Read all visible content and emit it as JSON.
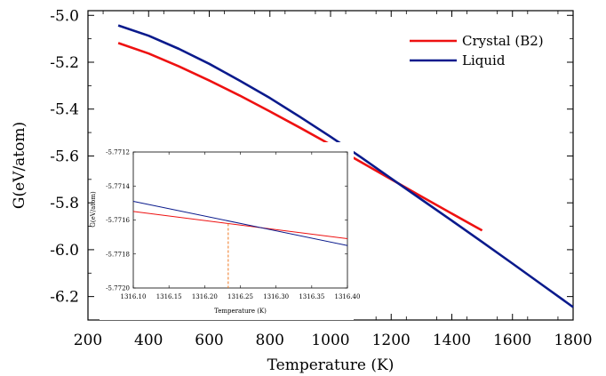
{
  "chart_data": [
    {
      "type": "line",
      "title": "",
      "xlabel": "Temperature (K)",
      "ylabel": "G(eV/atom)",
      "xlim": [
        200,
        1800
      ],
      "ylim": [
        -6.3,
        -4.98
      ],
      "xticks": [
        200,
        400,
        600,
        800,
        1000,
        1200,
        1400,
        1600,
        1800
      ],
      "xtick_labels": [
        "200",
        "400",
        "600",
        "800",
        "1000",
        "1200",
        "1400",
        "1600",
        "1800"
      ],
      "yticks": [
        -5.0,
        -5.2,
        -5.4,
        -5.6,
        -5.8,
        -6.0,
        -6.2
      ],
      "ytick_labels": [
        "-5.0",
        "-5.2",
        "-5.4",
        "-5.6",
        "-5.8",
        "-6.0",
        "-6.2"
      ],
      "legend_position": "top-right",
      "grid": false,
      "series": [
        {
          "name": "Crystal (B2)",
          "color": "#ee1111",
          "x": [
            300,
            400,
            500,
            600,
            700,
            800,
            900,
            1000,
            1100,
            1200,
            1300,
            1400,
            1500
          ],
          "y": [
            -5.118,
            -5.163,
            -5.218,
            -5.278,
            -5.342,
            -5.41,
            -5.48,
            -5.552,
            -5.626,
            -5.7,
            -5.773,
            -5.846,
            -5.918
          ]
        },
        {
          "name": "Liquid",
          "color": "#0a1a8c",
          "x": [
            300,
            400,
            500,
            600,
            700,
            800,
            900,
            1000,
            1100,
            1200,
            1300,
            1400,
            1500,
            1600,
            1700,
            1800
          ],
          "y": [
            -5.043,
            -5.087,
            -5.143,
            -5.207,
            -5.278,
            -5.353,
            -5.434,
            -5.518,
            -5.605,
            -5.696,
            -5.786,
            -5.876,
            -5.967,
            -6.059,
            -6.152,
            -6.245
          ]
        }
      ]
    },
    {
      "type": "line",
      "title": "",
      "xlabel": "Temperature (K)",
      "ylabel": "G(eV/atom)",
      "xlim": [
        1316.1,
        1316.4
      ],
      "ylim": [
        -5.772,
        -5.7712
      ],
      "xticks": [
        1316.1,
        1316.15,
        1316.2,
        1316.25,
        1316.3,
        1316.35,
        1316.4
      ],
      "xtick_labels": [
        "1316.10",
        "1316.15",
        "1316.20",
        "1316.25",
        "1316.30",
        "1316.35",
        "1316.40"
      ],
      "yticks": [
        -5.7712,
        -5.7714,
        -5.7716,
        -5.7718,
        -5.772
      ],
      "ytick_labels": [
        "-5.7712",
        "-5.7714",
        "-5.7716",
        "-5.7718",
        "-5.7720"
      ],
      "crossing_x": 1316.233,
      "crossing_color": "#f07820",
      "series": [
        {
          "name": "Crystal (B2)",
          "color": "#ee1111",
          "x": [
            1316.1,
            1316.4
          ],
          "y": [
            -5.77155,
            -5.77171
          ]
        },
        {
          "name": "Liquid",
          "color": "#0a1a8c",
          "x": [
            1316.1,
            1316.4
          ],
          "y": [
            -5.77149,
            -5.77175
          ]
        }
      ]
    }
  ]
}
